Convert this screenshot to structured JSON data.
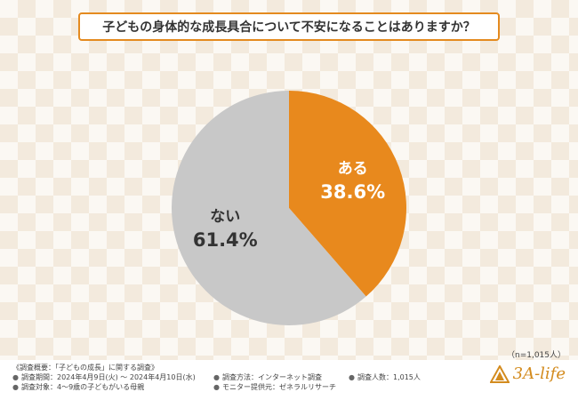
{
  "title": "子どもの身体的な成長具合について不安になることはありますか？",
  "chart_data": {
    "type": "pie",
    "categories": [
      "ある",
      "ない"
    ],
    "values": [
      38.6,
      61.4
    ],
    "value_labels": [
      "38.6%",
      "61.4%"
    ],
    "colors": [
      "#e8891d",
      "#c8c8c8"
    ]
  },
  "sample_size": "（n=1,015人）",
  "footer": {
    "overview": "《調査概要：「子どもの成長」に関する調査》",
    "period": "調査期間：2024年4月9日(火) ～ 2024年4月10日(水)",
    "method": "調査方法：インターネット調査",
    "count": "調査人数：1,015人",
    "target": "調査対象：4～9歳の子どもがいる母親",
    "provider": "モニター提供元：ゼネラルリサーチ",
    "bullet": "●"
  },
  "logo": {
    "text": "3A-life",
    "icon": "triangle-logo-icon"
  }
}
